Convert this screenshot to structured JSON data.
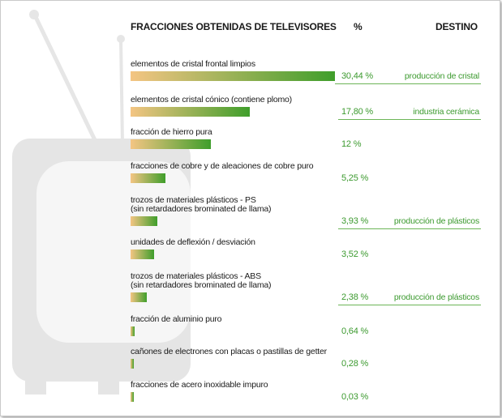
{
  "header": {
    "title": "FRACCIONES OBTENIDAS DE TELEVISORES",
    "percent": "%",
    "destination": "DESTINO"
  },
  "colors": {
    "bar_start": "#f4c583",
    "bar_end": "#3f9e2b",
    "text_green": "#3c9a2f",
    "rule_green": "#6cb557",
    "tv_gray": "#e5e5e5",
    "tv_light": "#f6f6f6"
  },
  "chart_data": {
    "type": "bar",
    "orientation": "horizontal",
    "categories": [
      "elementos de cristal frontal limpios",
      "elementos de cristal cónico (contiene plomo)",
      "fracción de hierro pura",
      "fracciones de cobre y de aleaciones de cobre puro",
      "trozos de materiales plásticos - PS\n(sin retardadores brominated de llama)",
      "unidades de deflexión / desviación",
      "trozos de materiales plásticos - ABS\n(sin retardadores brominated de llama)",
      "fracción de aluminio puro",
      "cañones de electrones con placas o pastillas de getter",
      "fracciones de acero inoxidable impuro"
    ],
    "values": [
      30.44,
      17.8,
      12,
      5.25,
      3.93,
      3.52,
      2.38,
      0.64,
      0.28,
      0.03
    ],
    "value_labels": [
      "30,44 %",
      "17,80 %",
      "12 %",
      "5,25 %",
      "3,93 %",
      "3,52 %",
      "2,38 %",
      "0,64 %",
      "0,28 %",
      "0,03 %"
    ],
    "destinations": [
      "producción de cristal",
      "industria cerámica",
      "",
      "",
      "producción de plásticos",
      "",
      "producción de plásticos",
      "",
      "",
      ""
    ],
    "xlim": [
      0,
      30.44
    ]
  }
}
